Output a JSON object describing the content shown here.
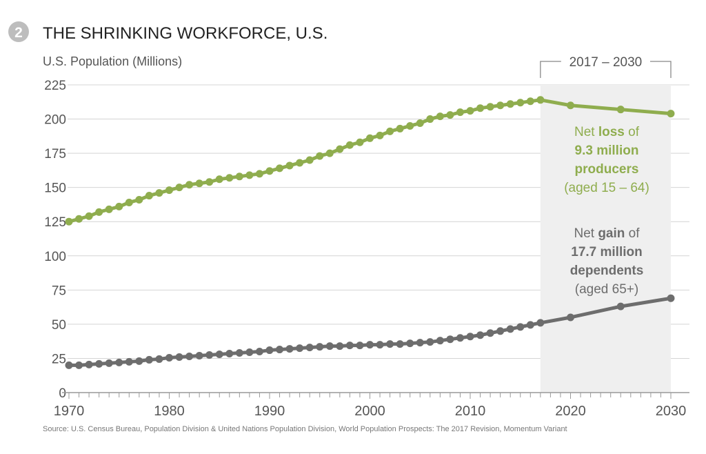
{
  "badge_number": "2",
  "title": "THE SHRINKING WORKFORCE, U.S.",
  "source": "Source: U.S. Census Bureau, Population Division & United Nations Population Division, World Population Prospects: The 2017 Revision, Momentum Variant",
  "colors": {
    "producers": "#8fad4e",
    "dependents": "#6d6d6d",
    "shade": "#efefef",
    "grid": "#d4d4d4",
    "text": "#555555"
  },
  "chart_data": {
    "type": "line",
    "title": "THE SHRINKING WORKFORCE, U.S.",
    "ylabel": "U.S. Population (Millions)",
    "xlabel": "",
    "xlim": [
      1970,
      2030
    ],
    "ylim": [
      0,
      225
    ],
    "yticks": [
      0,
      25,
      50,
      75,
      100,
      125,
      150,
      175,
      200,
      225
    ],
    "xticks": [
      1970,
      1980,
      1990,
      2000,
      2010,
      2020,
      2030
    ],
    "grid": true,
    "highlight_range": {
      "label": "2017 – 2030",
      "from": 2017,
      "to": 2030
    },
    "series": [
      {
        "key": "producers",
        "color": "#8fad4e",
        "x": [
          1970,
          1971,
          1972,
          1973,
          1974,
          1975,
          1976,
          1977,
          1978,
          1979,
          1980,
          1981,
          1982,
          1983,
          1984,
          1985,
          1986,
          1987,
          1988,
          1989,
          1990,
          1991,
          1992,
          1993,
          1994,
          1995,
          1996,
          1997,
          1998,
          1999,
          2000,
          2001,
          2002,
          2003,
          2004,
          2005,
          2006,
          2007,
          2008,
          2009,
          2010,
          2011,
          2012,
          2013,
          2014,
          2015,
          2016,
          2017,
          2020,
          2025,
          2030
        ],
        "y": [
          125,
          127,
          129,
          132,
          134,
          136,
          139,
          141,
          144,
          146,
          148,
          150,
          152,
          153,
          154,
          156,
          157,
          158,
          159,
          160,
          162,
          164,
          166,
          168,
          170,
          173,
          175,
          178,
          181,
          183,
          186,
          188,
          191,
          193,
          195,
          197,
          200,
          202,
          203,
          205,
          206,
          208,
          209,
          210,
          211,
          212,
          213,
          214,
          210,
          207,
          204
        ]
      },
      {
        "key": "dependents",
        "color": "#6d6d6d",
        "x": [
          1970,
          1971,
          1972,
          1973,
          1974,
          1975,
          1976,
          1977,
          1978,
          1979,
          1980,
          1981,
          1982,
          1983,
          1984,
          1985,
          1986,
          1987,
          1988,
          1989,
          1990,
          1991,
          1992,
          1993,
          1994,
          1995,
          1996,
          1997,
          1998,
          1999,
          2000,
          2001,
          2002,
          2003,
          2004,
          2005,
          2006,
          2007,
          2008,
          2009,
          2010,
          2011,
          2012,
          2013,
          2014,
          2015,
          2016,
          2017,
          2020,
          2025,
          2030
        ],
        "y": [
          20,
          20,
          20.5,
          21,
          21.5,
          22,
          22.5,
          23,
          24,
          24.5,
          25.5,
          26,
          26.5,
          27,
          27.5,
          28,
          28.5,
          29,
          29.5,
          30,
          31,
          31.5,
          32,
          32.5,
          33,
          33.5,
          34,
          34,
          34.5,
          34.5,
          35,
          35,
          35.5,
          35.5,
          36,
          36.5,
          37,
          38,
          39,
          40,
          41,
          42,
          43.5,
          45,
          46.5,
          48,
          49.5,
          51,
          55,
          63,
          69
        ]
      }
    ],
    "annotations": [
      {
        "key": "producers",
        "lines": [
          [
            {
              "t": "Net ",
              "b": false
            },
            {
              "t": "loss",
              "b": true
            },
            {
              "t": " of",
              "b": false
            }
          ],
          [
            {
              "t": "9.3 million",
              "b": true
            }
          ],
          [
            {
              "t": "producers",
              "b": true
            }
          ],
          [
            {
              "t": "(aged 15 – 64)",
              "b": false
            }
          ]
        ]
      },
      {
        "key": "dependents",
        "lines": [
          [
            {
              "t": "Net ",
              "b": false
            },
            {
              "t": "gain",
              "b": true
            },
            {
              "t": " of",
              "b": false
            }
          ],
          [
            {
              "t": "17.7 million",
              "b": true
            }
          ],
          [
            {
              "t": "dependents",
              "b": true
            }
          ],
          [
            {
              "t": "(aged 65+)",
              "b": false
            }
          ]
        ]
      }
    ]
  }
}
